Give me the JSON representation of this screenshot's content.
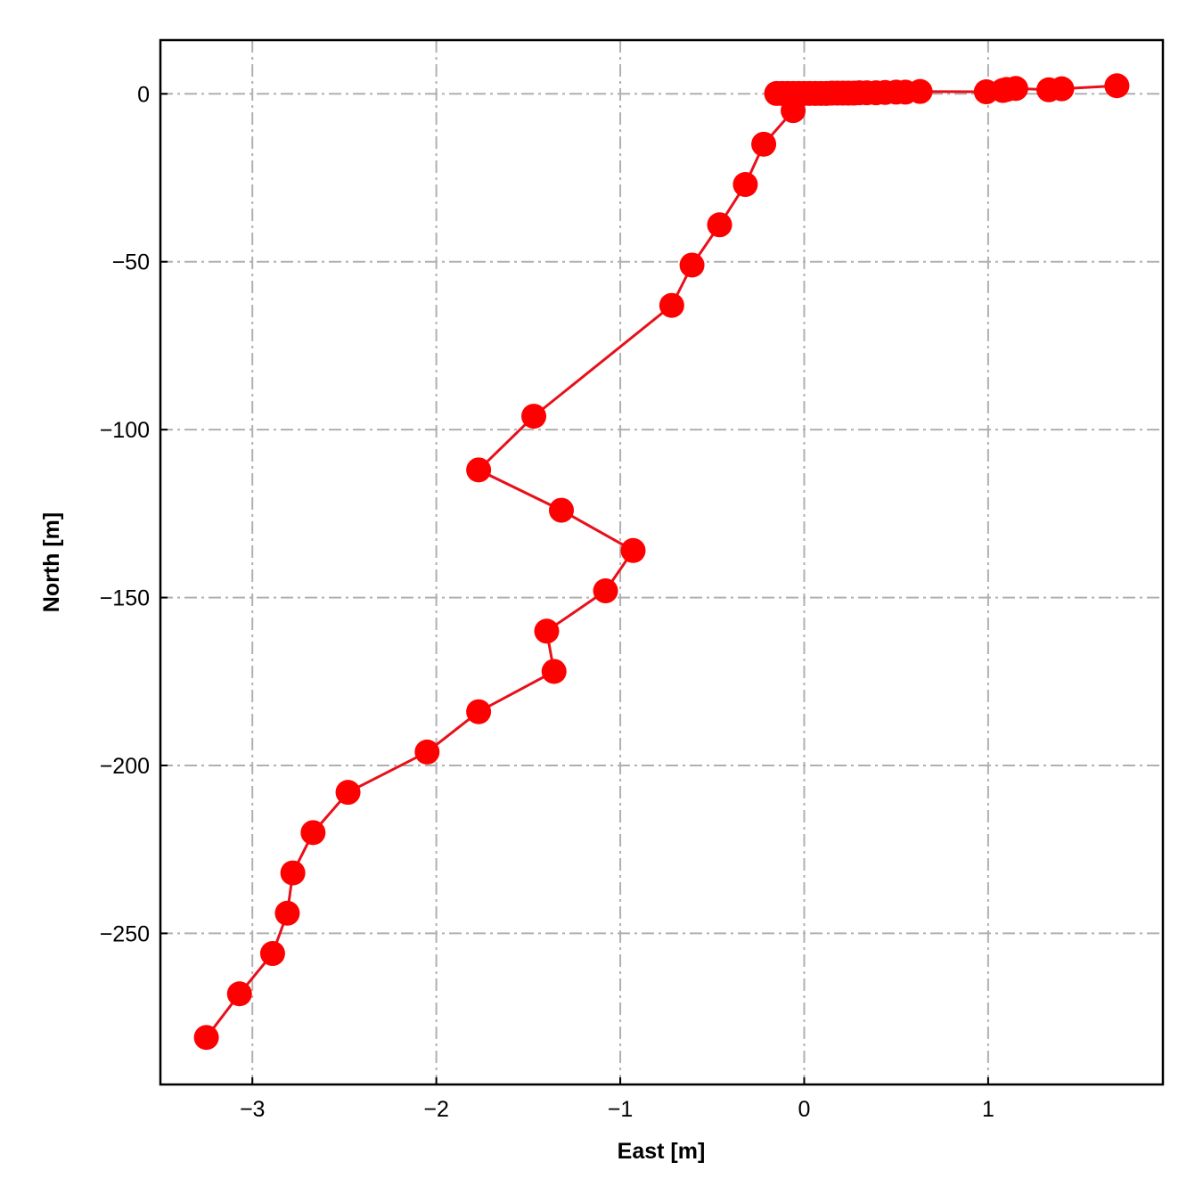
{
  "chart_data": {
    "type": "line",
    "title": "",
    "xlabel": "East [m]",
    "ylabel": "North [m]",
    "xlim": [
      -3.5,
      1.95
    ],
    "ylim": [
      -295,
      16
    ],
    "xticks": [
      -3,
      -2,
      -1,
      0,
      1
    ],
    "yticks": [
      0,
      -50,
      -100,
      -150,
      -200,
      -250
    ],
    "xtick_labels": [
      "−3",
      "−2",
      "−1",
      "0",
      "1"
    ],
    "ytick_labels": [
      "0",
      "−50",
      "−100",
      "−150",
      "−200",
      "−250"
    ],
    "grid": true,
    "legend": "none",
    "colors": {
      "series": "#ff0000",
      "line": "#e8101a",
      "grid": "#b0b0b0"
    },
    "series": [
      {
        "marker": "circle",
        "x": [
          1.7,
          1.4,
          1.33,
          1.15,
          1.1,
          1.08,
          0.99,
          0.63,
          0.55,
          0.5,
          0.44,
          0.39,
          0.34,
          0.3,
          0.27,
          0.24,
          0.21,
          0.18,
          0.15,
          0.12,
          0.09,
          0.06,
          0.03,
          0.0,
          -0.03,
          -0.06,
          -0.09,
          -0.12,
          -0.15,
          -0.06,
          -0.22,
          -0.32,
          -0.46,
          -0.61,
          -0.72,
          -1.47,
          -1.77,
          -1.32,
          -0.93,
          -1.08,
          -1.4,
          -1.36,
          -1.77,
          -2.05,
          -2.48,
          -2.67,
          -2.78,
          -2.81,
          -2.89,
          -3.07,
          -3.25
        ],
        "y": [
          2.4,
          1.5,
          1.2,
          1.6,
          1.3,
          1.0,
          0.6,
          0.7,
          0.5,
          0.5,
          0.4,
          0.3,
          0.3,
          0.3,
          0.2,
          0.2,
          0.2,
          0.2,
          0.2,
          0.1,
          0.1,
          0.1,
          0.1,
          0.1,
          0.1,
          0.1,
          0.1,
          0.1,
          0.1,
          -5,
          -15,
          -27,
          -39,
          -51,
          -63,
          -96,
          -112,
          -124,
          -136,
          -148,
          -160,
          -172,
          -184,
          -196,
          -208,
          -220,
          -232,
          -244,
          -256,
          -268,
          -281
        ]
      }
    ]
  }
}
